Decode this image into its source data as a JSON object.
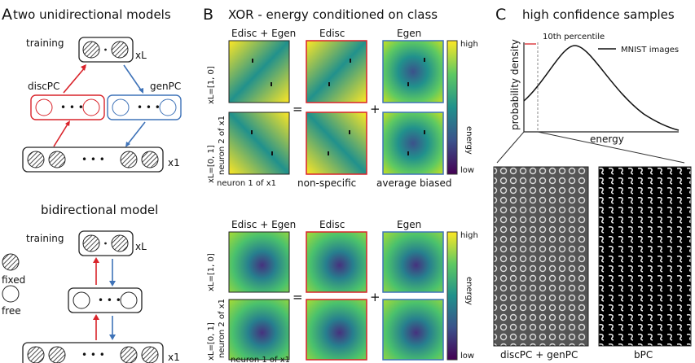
{
  "panel_a": {
    "letter": "A",
    "title": "two unidirectional models",
    "top_model": {
      "training_label": "training",
      "xl_label": "xL",
      "discpc_label": "discPC",
      "genpc_label": "genPC",
      "x1_label": "x1"
    },
    "bidirectional_title": "bidirectional model",
    "bottom_model": {
      "training_label": "training",
      "xl_label": "xL",
      "fixed_label": "fixed",
      "free_label": "free",
      "x1_label": "x1"
    },
    "colors": {
      "discpc": "#d9232a",
      "genpc": "#3f73b8"
    }
  },
  "panel_b": {
    "letter": "B",
    "title": "XOR - energy conditioned on class",
    "col_headers": [
      "Edisc + Egen",
      "Edisc",
      "Egen"
    ],
    "row_labels": [
      "xL=[1, 0]",
      "xL=[0, 1]"
    ],
    "y_axis_label": "neuron 2 of x1",
    "x_axis_label": "neuron 1 of x1",
    "eq_symbol": "=",
    "plus_symbol": "+",
    "sub_labels": [
      "non-specific",
      "average biased"
    ],
    "colorbar": {
      "high": "high",
      "low": "low",
      "label": "energy"
    },
    "colors": {
      "disc_frame": "#d9232a",
      "gen_frame": "#3f73b8"
    }
  },
  "panel_c": {
    "letter": "C",
    "title": "high confidence samples",
    "y_label": "probability density",
    "x_label": "energy",
    "percentile_label": "10th percentile",
    "legend": "MNIST images",
    "sample_labels": [
      "discPC + genPC",
      "bPC"
    ]
  }
}
